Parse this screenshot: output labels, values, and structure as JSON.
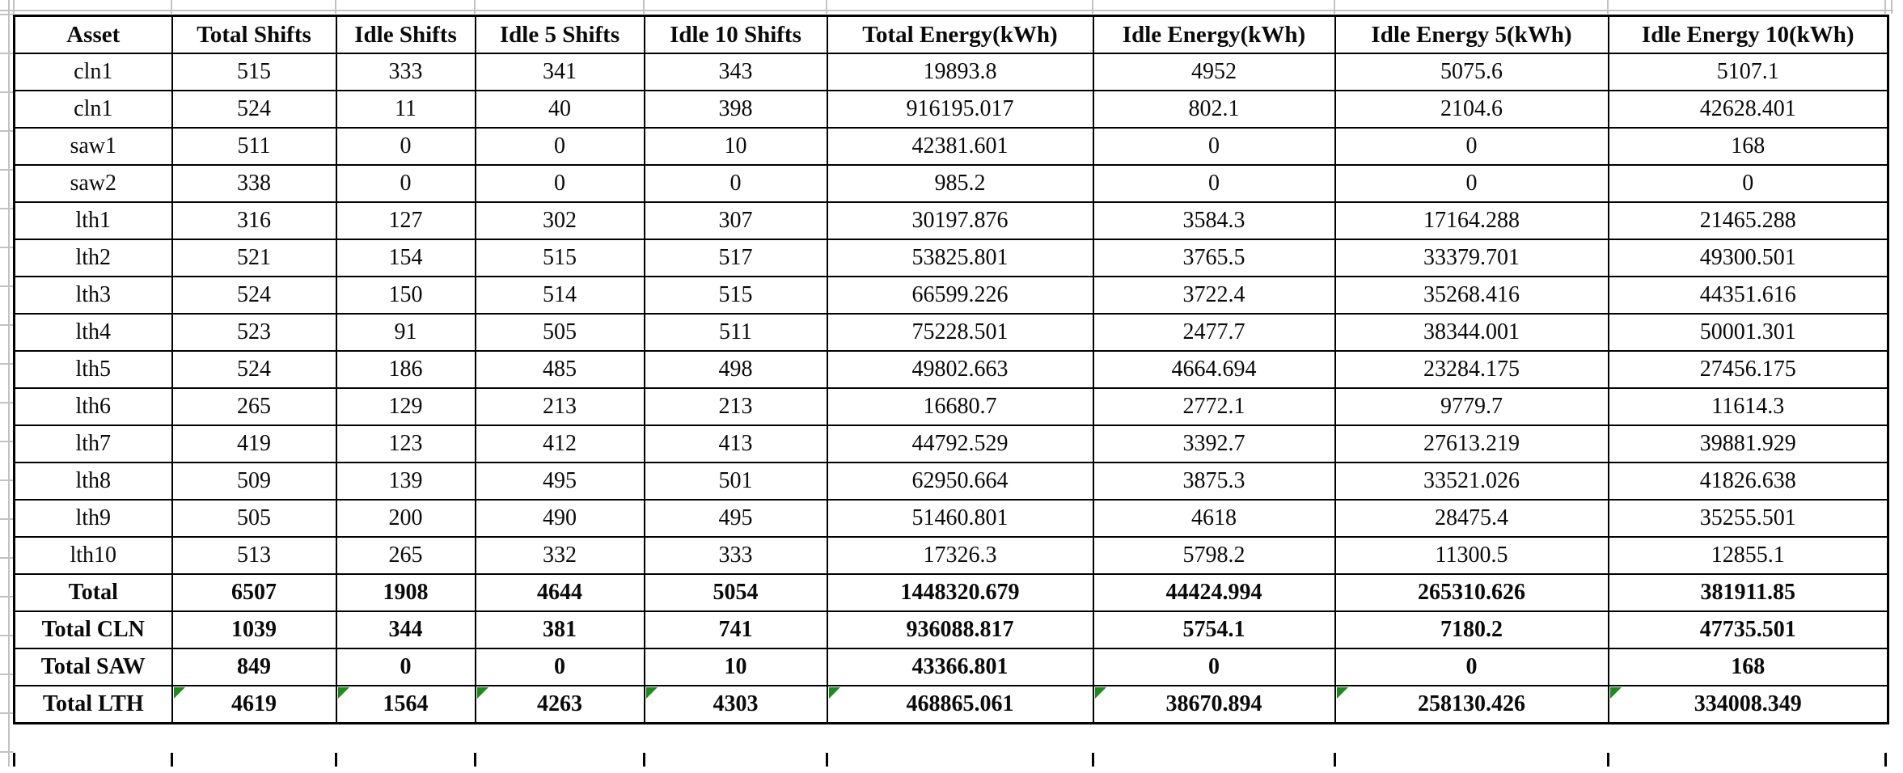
{
  "table": {
    "columns": [
      "Asset",
      "Total Shifts",
      "Idle Shifts",
      "Idle 5 Shifts",
      "Idle 10 Shifts",
      "Total Energy(kWh)",
      "Idle Energy(kWh)",
      "Idle Energy 5(kWh)",
      "Idle Energy 10(kWh)"
    ],
    "rows": [
      {
        "asset": "cln1",
        "values": [
          "515",
          "333",
          "341",
          "343",
          "19893.8",
          "4952",
          "5075.6",
          "5107.1"
        ]
      },
      {
        "asset": "cln1",
        "values": [
          "524",
          "11",
          "40",
          "398",
          "916195.017",
          "802.1",
          "2104.6",
          "42628.401"
        ]
      },
      {
        "asset": "saw1",
        "values": [
          "511",
          "0",
          "0",
          "10",
          "42381.601",
          "0",
          "0",
          "168"
        ]
      },
      {
        "asset": "saw2",
        "values": [
          "338",
          "0",
          "0",
          "0",
          "985.2",
          "0",
          "0",
          "0"
        ]
      },
      {
        "asset": "lth1",
        "values": [
          "316",
          "127",
          "302",
          "307",
          "30197.876",
          "3584.3",
          "17164.288",
          "21465.288"
        ]
      },
      {
        "asset": "lth2",
        "values": [
          "521",
          "154",
          "515",
          "517",
          "53825.801",
          "3765.5",
          "33379.701",
          "49300.501"
        ]
      },
      {
        "asset": "lth3",
        "values": [
          "524",
          "150",
          "514",
          "515",
          "66599.226",
          "3722.4",
          "35268.416",
          "44351.616"
        ]
      },
      {
        "asset": "lth4",
        "values": [
          "523",
          "91",
          "505",
          "511",
          "75228.501",
          "2477.7",
          "38344.001",
          "50001.301"
        ]
      },
      {
        "asset": "lth5",
        "values": [
          "524",
          "186",
          "485",
          "498",
          "49802.663",
          "4664.694",
          "23284.175",
          "27456.175"
        ]
      },
      {
        "asset": "lth6",
        "values": [
          "265",
          "129",
          "213",
          "213",
          "16680.7",
          "2772.1",
          "9779.7",
          "11614.3"
        ]
      },
      {
        "asset": "lth7",
        "values": [
          "419",
          "123",
          "412",
          "413",
          "44792.529",
          "3392.7",
          "27613.219",
          "39881.929"
        ]
      },
      {
        "asset": "lth8",
        "values": [
          "509",
          "139",
          "495",
          "501",
          "62950.664",
          "3875.3",
          "33521.026",
          "41826.638"
        ]
      },
      {
        "asset": "lth9",
        "values": [
          "505",
          "200",
          "490",
          "495",
          "51460.801",
          "4618",
          "28475.4",
          "35255.501"
        ]
      },
      {
        "asset": "lth10",
        "values": [
          "513",
          "265",
          "332",
          "333",
          "17326.3",
          "5798.2",
          "11300.5",
          "12855.1"
        ]
      }
    ],
    "total_rows": [
      {
        "asset": "Total",
        "values": [
          "6507",
          "1908",
          "4644",
          "5054",
          "1448320.679",
          "44424.994",
          "265310.626",
          "381911.85"
        ],
        "flagged": false
      },
      {
        "asset": "Total CLN",
        "values": [
          "1039",
          "344",
          "381",
          "741",
          "936088.817",
          "5754.1",
          "7180.2",
          "47735.501"
        ],
        "flagged": false
      },
      {
        "asset": "Total SAW",
        "values": [
          "849",
          "0",
          "0",
          "10",
          "43366.801",
          "0",
          "0",
          "168"
        ],
        "flagged": false
      },
      {
        "asset": "Total LTH",
        "values": [
          "4619",
          "1564",
          "4263",
          "4303",
          "468865.061",
          "38670.894",
          "258130.426",
          "334008.349"
        ],
        "flagged": true
      }
    ]
  },
  "colors": {
    "cell_border": "#000000",
    "gridline": "#c2c2c2",
    "formula_flag_green": "#1e8a1e",
    "text": "#0a0a0a",
    "background": "#ffffff"
  }
}
